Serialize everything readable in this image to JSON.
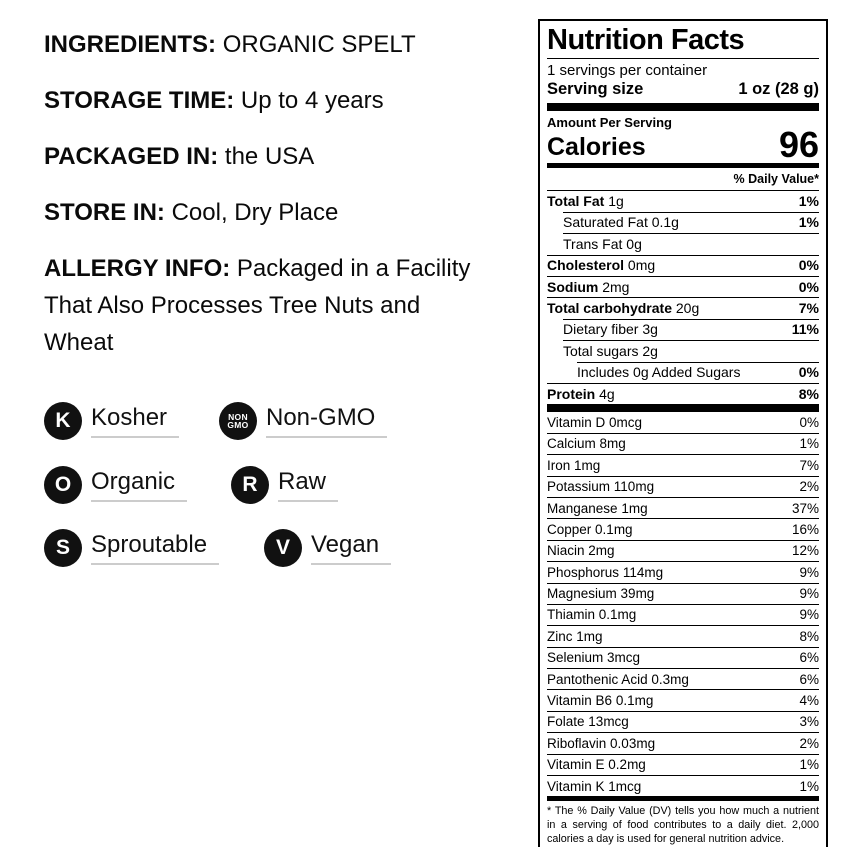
{
  "colors": {
    "text": "#000000",
    "underline": "#cccccc",
    "badge_bg": "#111111",
    "badge_fg": "#ffffff"
  },
  "info": {
    "items": [
      {
        "label": "INGREDIENTS:",
        "value": "ORGANIC SPELT"
      },
      {
        "label": "STORAGE TIME:",
        "value": "Up to 4 years"
      },
      {
        "label": "PACKAGED IN:",
        "value": "the USA"
      },
      {
        "label": "STORE IN:",
        "value": "Cool, Dry Place"
      },
      {
        "label": "ALLERGY INFO:",
        "value": "Packaged in a Facility That Also Processes Tree Nuts and Wheat"
      }
    ]
  },
  "badges": [
    {
      "icon": "K",
      "label": "Kosher"
    },
    {
      "icon_top": "NON",
      "icon_bottom": "GMO",
      "label": "Non-GMO"
    },
    {
      "icon": "O",
      "label": "Organic"
    },
    {
      "icon": "R",
      "label": "Raw"
    },
    {
      "icon": "S",
      "label": "Sproutable"
    },
    {
      "icon": "V",
      "label": "Vegan"
    }
  ],
  "nutrition": {
    "title": "Nutrition Facts",
    "servings_per_container": "1 servings per container",
    "serving_size_label": "Serving size",
    "serving_size_value": "1 oz (28 g)",
    "amount_per_serving": "Amount Per Serving",
    "calories_label": "Calories",
    "calories_value": "96",
    "daily_value_header": "% Daily Value*",
    "main_rows": [
      {
        "name": "Total Fat",
        "amount": "1g",
        "dv": "1%"
      },
      {
        "name": "Saturated Fat",
        "amount": "0.1g",
        "dv": "1%"
      },
      {
        "name": "Trans Fat",
        "amount": "0g",
        "dv": ""
      },
      {
        "name": "Cholesterol",
        "amount": "0mg",
        "dv": "0%"
      },
      {
        "name": "Sodium",
        "amount": "2mg",
        "dv": "0%"
      },
      {
        "name": "Total carbohydrate",
        "amount": "20g",
        "dv": "7%"
      },
      {
        "name": "Dietary fiber",
        "amount": "3g",
        "dv": "11%"
      },
      {
        "name": "Total sugars",
        "amount": "2g",
        "dv": ""
      },
      {
        "name": "Includes 0g Added Sugars",
        "amount": "",
        "dv": "0%"
      },
      {
        "name": "Protein",
        "amount": "4g",
        "dv": "8%"
      }
    ],
    "vitamin_rows": [
      {
        "name": "Vitamin D",
        "amount": "0mcg",
        "dv": "0%"
      },
      {
        "name": "Calcium",
        "amount": "8mg",
        "dv": "1%"
      },
      {
        "name": "Iron",
        "amount": "1mg",
        "dv": "7%"
      },
      {
        "name": "Potassium",
        "amount": "110mg",
        "dv": "2%"
      },
      {
        "name": "Manganese",
        "amount": "1mg",
        "dv": "37%"
      },
      {
        "name": "Copper",
        "amount": "0.1mg",
        "dv": "16%"
      },
      {
        "name": "Niacin",
        "amount": "2mg",
        "dv": "12%"
      },
      {
        "name": "Phosphorus",
        "amount": "114mg",
        "dv": "9%"
      },
      {
        "name": "Magnesium",
        "amount": "39mg",
        "dv": "9%"
      },
      {
        "name": "Thiamin",
        "amount": "0.1mg",
        "dv": "9%"
      },
      {
        "name": "Zinc",
        "amount": "1mg",
        "dv": "8%"
      },
      {
        "name": "Selenium",
        "amount": "3mcg",
        "dv": "6%"
      },
      {
        "name": "Pantothenic Acid",
        "amount": "0.3mg",
        "dv": "6%"
      },
      {
        "name": "Vitamin B6",
        "amount": "0.1mg",
        "dv": "4%"
      },
      {
        "name": "Folate",
        "amount": "13mcg",
        "dv": "3%"
      },
      {
        "name": "Riboflavin",
        "amount": "0.03mg",
        "dv": "2%"
      },
      {
        "name": "Vitamin E",
        "amount": "0.2mg",
        "dv": "1%"
      },
      {
        "name": "Vitamin K",
        "amount": "1mcg",
        "dv": "1%"
      }
    ],
    "footnote": "* The % Daily Value (DV) tells you how much a nutrient in a serving of food contributes to a daily diet. 2,000 calories a day is used for general nutrition advice."
  }
}
